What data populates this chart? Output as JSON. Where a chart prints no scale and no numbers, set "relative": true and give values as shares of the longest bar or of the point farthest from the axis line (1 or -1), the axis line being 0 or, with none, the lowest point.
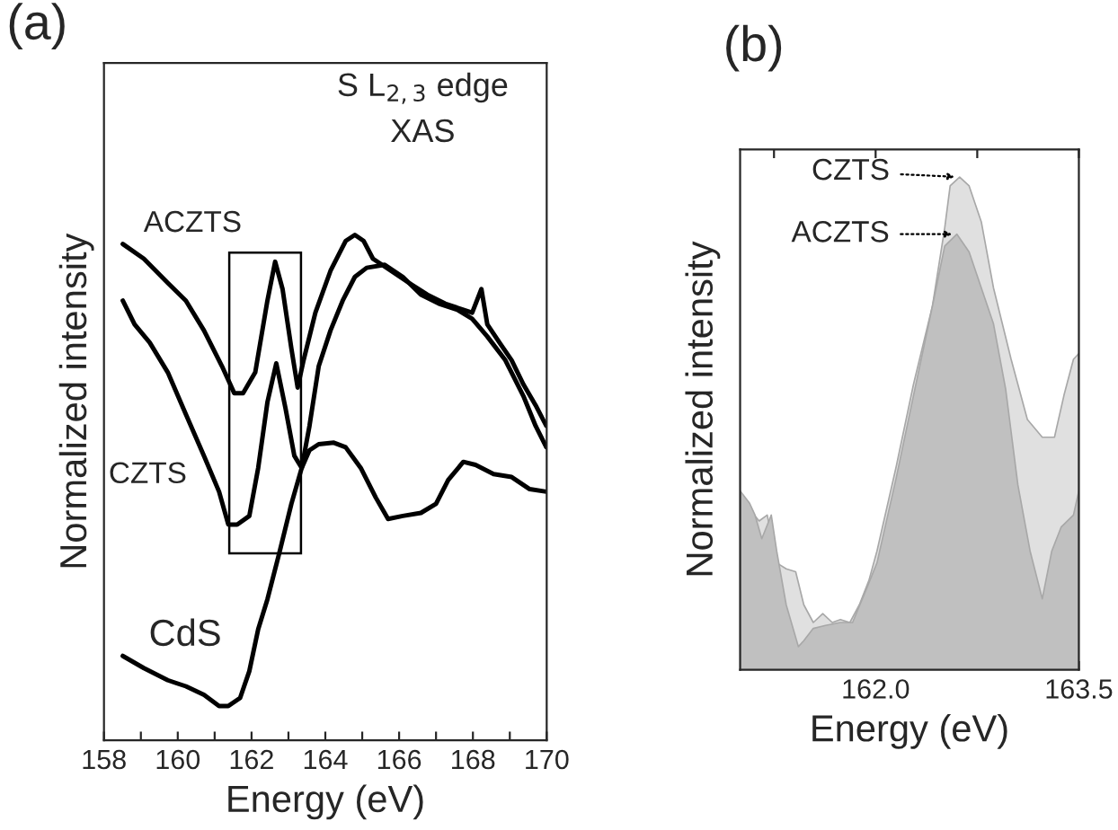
{
  "chart_data": [
    {
      "type": "line",
      "title": "(a)",
      "xlabel": "Energy (eV)",
      "ylabel": "Normalized intensity",
      "relative": true,
      "xlim": [
        158,
        170
      ],
      "xticks": [
        158,
        {
          "value": 159,
          "label": null
        },
        160,
        {
          "value": 161,
          "label": null
        },
        162,
        {
          "value": 163,
          "label": null
        },
        164,
        {
          "value": 165,
          "label": null
        },
        166,
        {
          "value": 167,
          "label": null
        },
        168,
        {
          "value": 169,
          "label": null
        },
        170
      ],
      "annotations": [
        "S L$_{2,3}$ edge\nXAS"
      ],
      "series": [
        {
          "name": "ACZTS",
          "color": "#000000",
          "x": [
            158.51,
            159.08,
            159.73,
            160.22,
            160.71,
            161.2,
            161.53,
            161.77,
            162.1,
            162.43,
            162.64,
            162.84,
            163.08,
            163.25,
            163.41,
            163.73,
            164.14,
            164.55,
            164.8,
            165.04,
            165.29,
            165.78,
            166.27,
            166.76,
            167.25,
            167.74,
            167.98,
            168.23,
            168.39,
            168.72,
            169.05,
            169.37,
            169.7,
            169.99
          ],
          "values": [
            0.982,
            0.953,
            0.905,
            0.87,
            0.811,
            0.74,
            0.687,
            0.687,
            0.728,
            0.87,
            0.947,
            0.893,
            0.775,
            0.698,
            0.752,
            0.846,
            0.929,
            0.988,
            1.0,
            0.988,
            0.953,
            0.929,
            0.905,
            0.882,
            0.864,
            0.852,
            0.846,
            0.893,
            0.823,
            0.787,
            0.752,
            0.704,
            0.663,
            0.622
          ]
        },
        {
          "name": "CZTS",
          "color": "#000000",
          "x": [
            158.51,
            158.83,
            159.24,
            159.73,
            160.22,
            160.71,
            161.12,
            161.37,
            161.61,
            161.94,
            162.18,
            162.43,
            162.67,
            162.92,
            163.16,
            163.36,
            163.57,
            163.82,
            164.14,
            164.47,
            164.8,
            165.12,
            165.61,
            166.1,
            166.59,
            167.08,
            167.58,
            167.98,
            168.39,
            168.88,
            169.37,
            169.7,
            169.99
          ],
          "values": [
            0.87,
            0.823,
            0.787,
            0.728,
            0.645,
            0.563,
            0.492,
            0.427,
            0.427,
            0.444,
            0.539,
            0.669,
            0.746,
            0.657,
            0.563,
            0.539,
            0.622,
            0.74,
            0.811,
            0.87,
            0.917,
            0.935,
            0.941,
            0.917,
            0.882,
            0.864,
            0.852,
            0.834,
            0.799,
            0.752,
            0.681,
            0.622,
            0.58
          ]
        },
        {
          "name": "CdS",
          "color": "#000000",
          "x": [
            158.51,
            159.08,
            159.73,
            160.22,
            160.71,
            161.12,
            161.37,
            161.69,
            161.94,
            162.18,
            162.43,
            162.76,
            163.08,
            163.36,
            163.57,
            163.82,
            164.23,
            164.55,
            164.96,
            165.37,
            165.7,
            166.1,
            166.59,
            167.0,
            167.33,
            167.74,
            168.07,
            168.56,
            169.05,
            169.54,
            169.99
          ],
          "values": [
            0.167,
            0.143,
            0.119,
            0.107,
            0.09,
            0.068,
            0.068,
            0.084,
            0.137,
            0.22,
            0.279,
            0.373,
            0.468,
            0.539,
            0.574,
            0.586,
            0.589,
            0.58,
            0.539,
            0.48,
            0.438,
            0.444,
            0.45,
            0.468,
            0.515,
            0.551,
            0.545,
            0.527,
            0.521,
            0.497,
            0.492
          ]
        }
      ]
    },
    {
      "type": "area",
      "title": "(b)",
      "xlabel": "Energy (eV)",
      "ylabel": "Normalized intensity",
      "relative": true,
      "xlim": [
        161.0,
        163.5
      ],
      "xticks": [
        {
          "value": 161.25,
          "label": null
        },
        {
          "value": 162.0,
          "label": "162.0"
        },
        {
          "value": 162.75,
          "label": null
        },
        {
          "value": 163.5,
          "label": "163.5"
        }
      ],
      "series": [
        {
          "name": "CZTS",
          "color": "#e0e0e0",
          "x": [
            161.0,
            161.07,
            161.14,
            161.2,
            161.27,
            161.34,
            161.41,
            161.47,
            161.54,
            161.61,
            161.68,
            161.74,
            161.81,
            161.88,
            161.95,
            162.01,
            162.15,
            162.28,
            162.42,
            162.51,
            162.55,
            162.62,
            162.69,
            162.78,
            162.87,
            163.0,
            163.12,
            163.23,
            163.32,
            163.39,
            163.46,
            163.5
          ],
          "values": [
            0.32,
            0.326,
            0.302,
            0.314,
            0.217,
            0.205,
            0.199,
            0.132,
            0.096,
            0.114,
            0.096,
            0.102,
            0.096,
            0.132,
            0.181,
            0.241,
            0.41,
            0.58,
            0.739,
            0.897,
            0.982,
            1.0,
            0.982,
            0.909,
            0.775,
            0.63,
            0.508,
            0.472,
            0.472,
            0.557,
            0.63,
            0.642
          ]
        },
        {
          "name": "ACZTS",
          "color": "#c0c0c0",
          "x": [
            161.0,
            161.07,
            161.11,
            161.16,
            161.23,
            161.27,
            161.34,
            161.43,
            161.47,
            161.54,
            161.63,
            161.74,
            161.83,
            161.92,
            162.01,
            162.15,
            162.28,
            162.42,
            162.51,
            162.6,
            162.69,
            162.78,
            162.87,
            162.96,
            163.05,
            163.14,
            163.23,
            163.3,
            163.37,
            163.46,
            163.5
          ],
          "values": [
            0.363,
            0.338,
            0.314,
            0.266,
            0.314,
            0.241,
            0.132,
            0.047,
            0.059,
            0.084,
            0.09,
            0.096,
            0.096,
            0.156,
            0.217,
            0.387,
            0.557,
            0.739,
            0.86,
            0.884,
            0.848,
            0.775,
            0.702,
            0.569,
            0.375,
            0.241,
            0.144,
            0.241,
            0.29,
            0.314,
            0.363
          ]
        }
      ]
    }
  ]
}
